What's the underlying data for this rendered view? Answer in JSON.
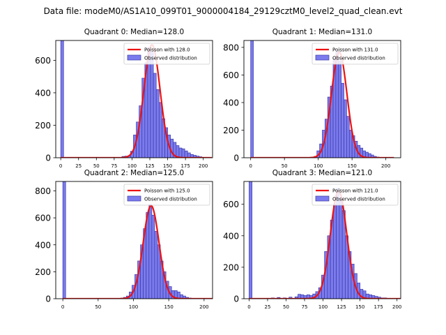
{
  "figure": {
    "suptitle": "Data file: modeM0/AS1A10_099T01_9000004184_29129cztM0_level2_quad_clean.evt"
  },
  "colors": {
    "bar_fill": "#7b7bee",
    "bar_edge": "#3a3aa8",
    "curve": "#ee1111"
  },
  "chart_data": [
    {
      "type": "bar",
      "title": "Quadrant 0: Median=128.0",
      "xlabel": "",
      "ylabel": "",
      "xlim": [
        -7,
        213
      ],
      "ylim": [
        0,
        722
      ],
      "xticks": [
        0,
        25,
        50,
        75,
        100,
        125,
        150,
        175,
        200
      ],
      "yticks": [
        0,
        200,
        400,
        600
      ],
      "legend": [
        "Poisson with 128.0",
        "Observed distribution"
      ],
      "legend_position": "top-right",
      "bin_width": 4,
      "spike": {
        "x": 2,
        "value": 722
      },
      "bins": [
        [
          88,
          8
        ],
        [
          92,
          10
        ],
        [
          96,
          12
        ],
        [
          100,
          40
        ],
        [
          104,
          140
        ],
        [
          108,
          220
        ],
        [
          112,
          320
        ],
        [
          116,
          490
        ],
        [
          120,
          585
        ],
        [
          124,
          680
        ],
        [
          128,
          650
        ],
        [
          132,
          520
        ],
        [
          136,
          420
        ],
        [
          140,
          340
        ],
        [
          144,
          240
        ],
        [
          148,
          185
        ],
        [
          152,
          140
        ],
        [
          156,
          115
        ],
        [
          160,
          95
        ],
        [
          164,
          75
        ],
        [
          168,
          60
        ],
        [
          172,
          55
        ],
        [
          176,
          42
        ],
        [
          180,
          30
        ],
        [
          184,
          20
        ],
        [
          188,
          15
        ],
        [
          192,
          10
        ],
        [
          196,
          6
        ]
      ],
      "poisson": {
        "mean": 128.0,
        "peak": 695
      }
    },
    {
      "type": "bar",
      "title": "Quadrant 1: Median=131.0",
      "xlabel": "",
      "ylabel": "",
      "xlim": [
        -10,
        222
      ],
      "ylim": [
        0,
        850
      ],
      "xticks": [
        0,
        50,
        100,
        150,
        200
      ],
      "yticks": [
        0,
        200,
        400,
        600,
        800
      ],
      "legend": [
        "Poisson with 131.0",
        "Observed distribution"
      ],
      "legend_position": "top-right",
      "bin_width": 4,
      "spike": {
        "x": 2,
        "value": 850
      },
      "bins": [
        [
          92,
          5
        ],
        [
          96,
          10
        ],
        [
          100,
          50
        ],
        [
          104,
          100
        ],
        [
          108,
          200
        ],
        [
          112,
          280
        ],
        [
          116,
          440
        ],
        [
          120,
          520
        ],
        [
          124,
          720
        ],
        [
          128,
          770
        ],
        [
          132,
          700
        ],
        [
          136,
          540
        ],
        [
          140,
          420
        ],
        [
          144,
          300
        ],
        [
          148,
          200
        ],
        [
          152,
          160
        ],
        [
          156,
          120
        ],
        [
          160,
          90
        ],
        [
          164,
          70
        ],
        [
          168,
          50
        ],
        [
          172,
          40
        ],
        [
          176,
          30
        ],
        [
          180,
          20
        ],
        [
          184,
          10
        ],
        [
          188,
          5
        ]
      ],
      "poisson": {
        "mean": 131.0,
        "peak": 765
      }
    },
    {
      "type": "bar",
      "title": "Quadrant 2: Median=125.0",
      "xlabel": "",
      "ylabel": "",
      "xlim": [
        -10,
        212
      ],
      "ylim": [
        0,
        870
      ],
      "xticks": [
        0,
        50,
        100,
        150,
        200
      ],
      "yticks": [
        0,
        200,
        400,
        600,
        800
      ],
      "legend": [
        "Poisson with 125.0",
        "Observed distribution"
      ],
      "legend_position": "top-right",
      "bin_width": 4,
      "spike": {
        "x": 2,
        "value": 870
      },
      "bins": [
        [
          84,
          5
        ],
        [
          88,
          10
        ],
        [
          92,
          20
        ],
        [
          96,
          50
        ],
        [
          100,
          100
        ],
        [
          104,
          180
        ],
        [
          108,
          280
        ],
        [
          112,
          400
        ],
        [
          116,
          520
        ],
        [
          120,
          640
        ],
        [
          124,
          700
        ],
        [
          128,
          620
        ],
        [
          132,
          500
        ],
        [
          136,
          400
        ],
        [
          140,
          280
        ],
        [
          144,
          200
        ],
        [
          148,
          130
        ],
        [
          152,
          90
        ],
        [
          156,
          60
        ],
        [
          160,
          60
        ],
        [
          164,
          50
        ],
        [
          168,
          30
        ],
        [
          172,
          20
        ],
        [
          176,
          10
        ],
        [
          180,
          5
        ]
      ],
      "poisson": {
        "mean": 125.0,
        "peak": 690
      }
    },
    {
      "type": "bar",
      "title": "Quadrant 3: Median=121.0",
      "xlabel": "",
      "ylabel": "",
      "xlim": [
        -7,
        205
      ],
      "ylim": [
        0,
        745
      ],
      "xticks": [
        0,
        25,
        50,
        75,
        100,
        125,
        150,
        175,
        200
      ],
      "yticks": [
        0,
        200,
        400,
        600
      ],
      "legend": [
        "Poisson with 121.0",
        "Observed distribution"
      ],
      "legend_position": "top-right",
      "bin_width": 4,
      "spike": {
        "x": 2,
        "value": 745
      },
      "bins": [
        [
          32,
          5
        ],
        [
          40,
          8
        ],
        [
          48,
          5
        ],
        [
          56,
          10
        ],
        [
          64,
          12
        ],
        [
          68,
          28
        ],
        [
          72,
          25
        ],
        [
          76,
          20
        ],
        [
          80,
          25
        ],
        [
          84,
          20
        ],
        [
          88,
          30
        ],
        [
          92,
          45
        ],
        [
          96,
          70
        ],
        [
          100,
          150
        ],
        [
          104,
          300
        ],
        [
          108,
          400
        ],
        [
          112,
          500
        ],
        [
          116,
          600
        ],
        [
          120,
          700
        ],
        [
          124,
          640
        ],
        [
          128,
          560
        ],
        [
          132,
          400
        ],
        [
          136,
          300
        ],
        [
          140,
          220
        ],
        [
          144,
          160
        ],
        [
          148,
          100
        ],
        [
          152,
          60
        ],
        [
          156,
          50
        ],
        [
          160,
          30
        ],
        [
          164,
          25
        ],
        [
          168,
          20
        ],
        [
          172,
          15
        ],
        [
          176,
          10
        ],
        [
          180,
          5
        ],
        [
          184,
          5
        ]
      ],
      "poisson": {
        "mean": 121.0,
        "peak": 685
      }
    }
  ]
}
